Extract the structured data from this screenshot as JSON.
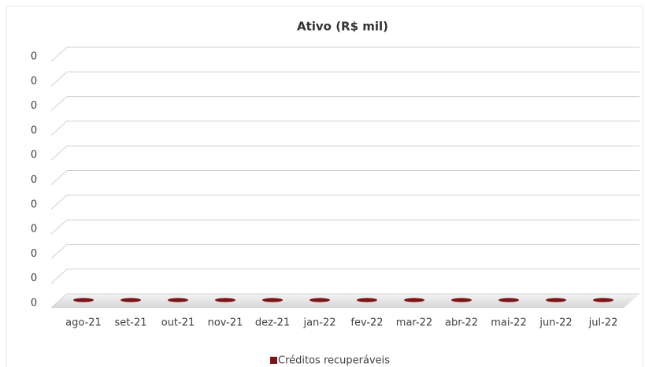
{
  "chart_data": {
    "type": "bar3d",
    "title": "Ativo (R$ mil)",
    "categories": [
      "ago-21",
      "set-21",
      "out-21",
      "nov-21",
      "dez-21",
      "jan-22",
      "fev-22",
      "mar-22",
      "abr-22",
      "mai-22",
      "jun-22",
      "jul-22"
    ],
    "series": [
      {
        "name": "Créditos recuperáveis",
        "color": "#7b1416",
        "values": [
          0,
          0,
          0,
          0,
          0,
          0,
          0,
          0,
          0,
          0,
          0,
          0
        ]
      }
    ],
    "ylim": [
      0,
      0.4
    ],
    "yticks": [
      {
        "value": 0,
        "label": "0"
      },
      {
        "value": 0.04,
        "label": "0"
      },
      {
        "value": 0.08,
        "label": "0"
      },
      {
        "value": 0.12,
        "label": "0"
      },
      {
        "value": 0.16,
        "label": "0"
      },
      {
        "value": 0.2,
        "label": "0"
      },
      {
        "value": 0.24,
        "label": "0"
      },
      {
        "value": 0.28,
        "label": "0"
      },
      {
        "value": 0.32,
        "label": "0"
      },
      {
        "value": 0.36,
        "label": "0"
      },
      {
        "value": 0.4,
        "label": "0"
      }
    ],
    "grid": true,
    "legend": "bottom"
  }
}
